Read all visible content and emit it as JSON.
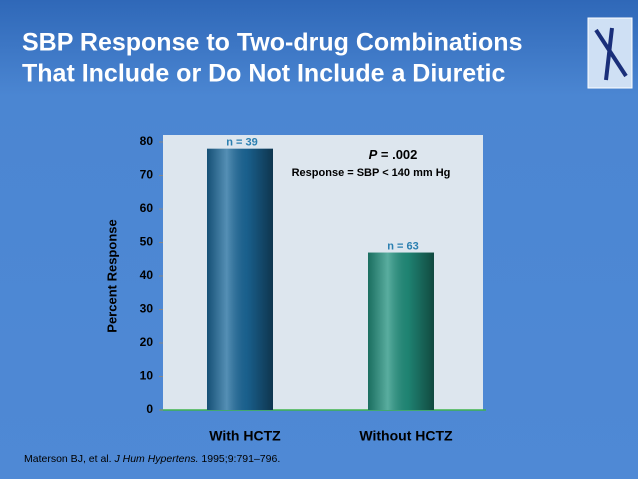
{
  "chart_data": {
    "type": "bar",
    "title": [
      "SBP Response to Two-drug Combinations",
      "That Include or Do Not Include a Diuretic"
    ],
    "y_label": "Percent Response",
    "categories": [
      "With HCTZ",
      "Without HCTZ"
    ],
    "values": [
      78,
      47
    ],
    "colors": [
      "#1c6a9c",
      "#22927f"
    ],
    "value_notes": [
      "n = 39",
      "n = 63"
    ],
    "p_symbol": "P",
    "p_text": " = .002",
    "definition": "Response = SBP < 140 mm Hg",
    "ylim": [
      0,
      80
    ],
    "yticks": [
      0,
      10,
      20,
      30,
      40,
      50,
      60,
      70,
      80
    ],
    "citation": {
      "authors": "Materson BJ, et al. ",
      "journal": "J Hum Hypertens.",
      "details": " 1995;9:791–796."
    }
  }
}
